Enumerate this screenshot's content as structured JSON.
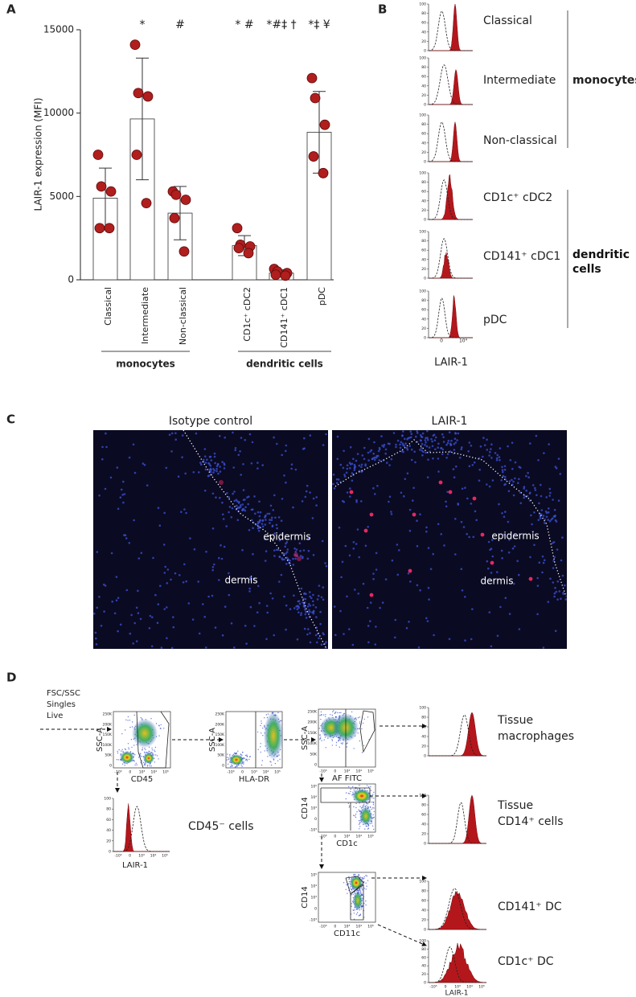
{
  "panel_labels": [
    "A",
    "B",
    "C",
    "D"
  ],
  "chart_data": {
    "type": "bar",
    "y_label": "LAIR-1 expression (MFI)",
    "categories": [
      "Classical",
      "Intermediate",
      "Non-classical",
      "CD1c⁺ cDC2",
      "CD141⁺ cDC1",
      "pDC"
    ],
    "values": [
      4900,
      9650,
      4000,
      2050,
      400,
      8850
    ],
    "errors": [
      1800,
      3650,
      1600,
      600,
      200,
      2450
    ],
    "points": [
      [
        7500,
        5600,
        5300,
        3100,
        3100
      ],
      [
        14100,
        11200,
        11000,
        7500,
        4600
      ],
      [
        5300,
        5100,
        4800,
        3700,
        1700
      ],
      [
        3100,
        2100,
        2000,
        1900,
        1600
      ],
      [
        650,
        500,
        400,
        300,
        250
      ],
      [
        12100,
        10900,
        9300,
        7400,
        6400
      ]
    ],
    "significance": [
      null,
      "*",
      "#",
      "* #",
      "*#‡ †",
      "*‡ ¥"
    ],
    "groups": [
      "monocytes",
      "dendritic cells"
    ],
    "color": "#ffffff",
    "point_color": "#b01e1e",
    "ylim": [
      0,
      15000
    ],
    "yticks": [
      0,
      5000,
      10000,
      15000
    ]
  },
  "panel_b": {
    "populations": [
      "Classical",
      "Intermediate",
      "Non-classical",
      "CD1c⁺ cDC2",
      "CD141⁺ cDC1",
      "pDC"
    ],
    "groups": [
      "monocytes",
      "dendritic cells"
    ],
    "yticks": [
      "100",
      "80",
      "60",
      "40",
      "20",
      "0"
    ],
    "xticks": [
      "0",
      "10⁴"
    ],
    "x_label": "LAIR-1"
  },
  "panel_c": {
    "images": [
      {
        "title": "Isotype control",
        "labels": [
          "epidermis",
          "dermis"
        ]
      },
      {
        "title": "LAIR-1",
        "labels": [
          "epidermis",
          "dermis"
        ]
      }
    ]
  },
  "panel_d": {
    "gating": [
      "FSC/SSC",
      "Singles",
      "Live"
    ],
    "axes": {
      "ssc": "SSC-A",
      "cd45": "CD45",
      "hladr": "HLA-DR",
      "af": "AF FITC",
      "cd14": "CD14",
      "cd1c": "CD1c",
      "cd11c": "CD11c",
      "lair": "LAIR-1"
    },
    "scatter_yticks": [
      "250K",
      "200K",
      "150K",
      "100K",
      "50K",
      "0"
    ],
    "log_ticks": [
      "-10³",
      "0",
      "10³",
      "10⁴",
      "10⁵"
    ],
    "hist_yticks": [
      "100",
      "80",
      "60",
      "40",
      "20",
      "0"
    ],
    "cd45_negative": "CD45⁻ cells",
    "populations": [
      [
        "Tissue",
        "macrophages"
      ],
      [
        "Tissue",
        "CD14⁺ cells"
      ],
      [
        "CD141⁺ DC"
      ],
      [
        "CD1c⁺ DC"
      ]
    ]
  }
}
